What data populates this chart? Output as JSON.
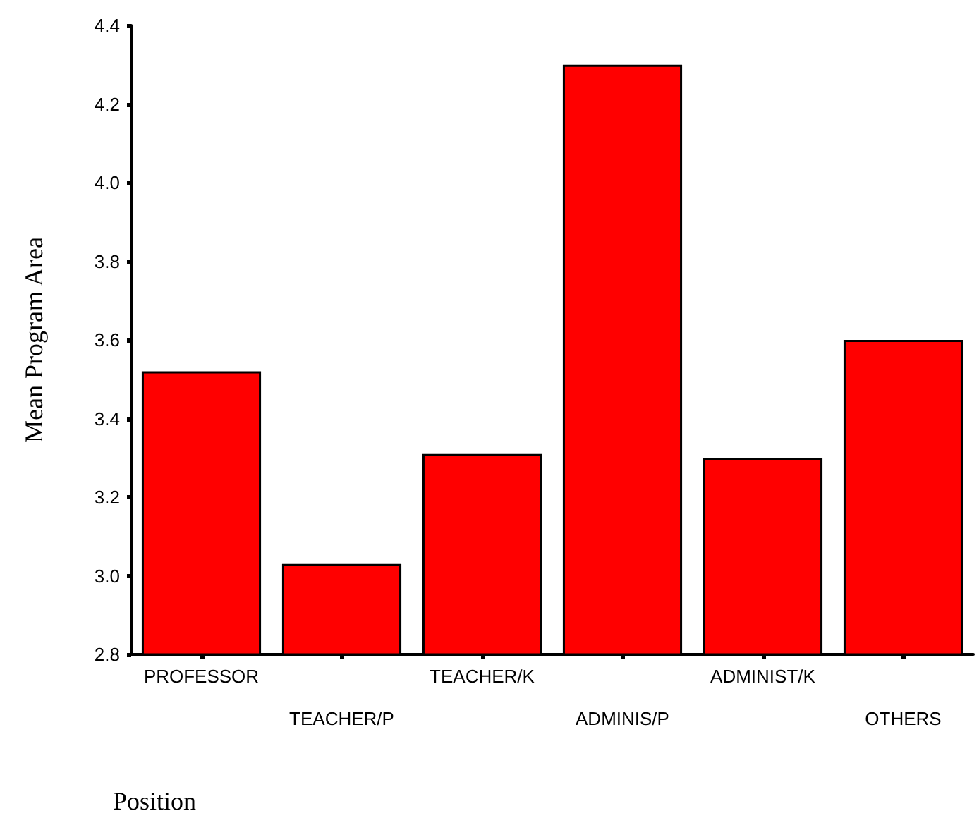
{
  "chart_data": {
    "type": "bar",
    "xlabel": "Position",
    "ylabel": "Mean Program Area",
    "categories": [
      "PROFESSOR",
      "TEACHER/P",
      "TEACHER/K",
      "ADMINIS/P",
      "ADMINIST/K",
      "OTHERS"
    ],
    "values": [
      3.52,
      3.03,
      3.31,
      4.3,
      3.3,
      3.6
    ],
    "color": "#ff0000",
    "ylim": [
      2.8,
      4.4
    ],
    "yticks": [
      2.8,
      {
        "value": 3,
        "label": "3.0"
      },
      3.2,
      3.4,
      3.6,
      3.8,
      {
        "value": 4,
        "label": "4.0"
      },
      4.2,
      4.4
    ],
    "grid": false
  }
}
